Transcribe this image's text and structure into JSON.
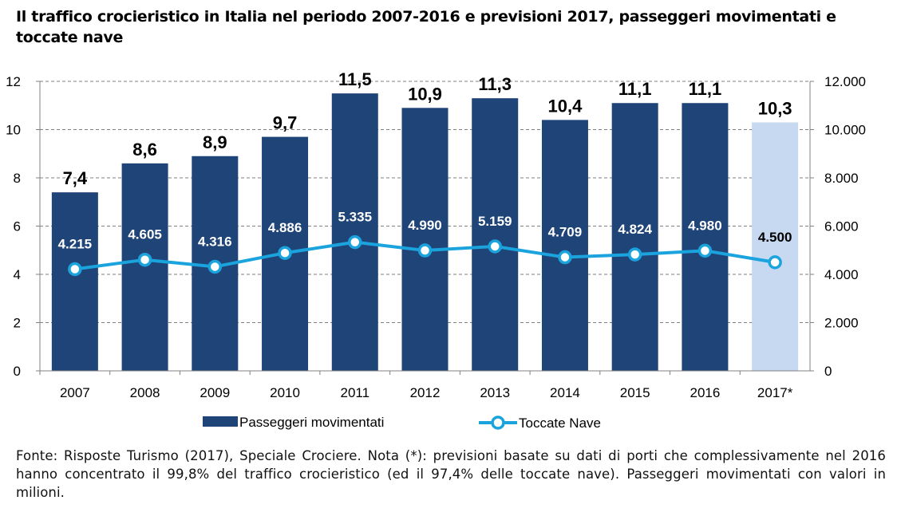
{
  "title": "Il traffico crocieristico in Italia nel periodo 2007-2016 e previsioni 2017, passeggeri movimentati e toccate nave",
  "footnote": "Fonte: Risposte Turismo (2017), Speciale Crociere. Nota (*): previsioni basate su dati di porti che complessivamente nel 2016 hanno concentrato il 99,8% del traffico crocieristico (ed il 97,4% delle toccate nave). Passeggeri movimentati con valori in milioni.",
  "chart_data": {
    "type": "bar",
    "categories": [
      "2007",
      "2008",
      "2009",
      "2010",
      "2011",
      "2012",
      "2013",
      "2014",
      "2015",
      "2016",
      "2017*"
    ],
    "series": [
      {
        "name": "Passeggeri movimentati",
        "type": "bar",
        "axis": "left",
        "values": [
          7.4,
          8.6,
          8.9,
          9.7,
          11.5,
          10.9,
          11.3,
          10.4,
          11.1,
          11.1,
          10.3
        ],
        "labels": [
          "7,4",
          "8,6",
          "8,9",
          "9,7",
          "11,5",
          "10,9",
          "11,3",
          "10,4",
          "11,1",
          "11,1",
          "10,3"
        ],
        "color": "#1f4477",
        "forecast_color": "#c6d9f1"
      },
      {
        "name": "Toccate Nave",
        "type": "line",
        "axis": "right",
        "values": [
          4215,
          4605,
          4316,
          4886,
          5335,
          4990,
          5159,
          4709,
          4824,
          4980,
          4500
        ],
        "labels": [
          "4.215",
          "4.605",
          "4.316",
          "4.886",
          "5.335",
          "4.990",
          "5.159",
          "4.709",
          "4.824",
          "4.980",
          "4.500"
        ],
        "color": "#1aa3dc"
      }
    ],
    "y_left": {
      "ylim": [
        0,
        12
      ],
      "ticks": [
        "0",
        "2",
        "4",
        "6",
        "8",
        "10",
        "12"
      ]
    },
    "y_right": {
      "ylim": [
        0,
        12000
      ],
      "ticks": [
        "0",
        "2.000",
        "4.000",
        "6.000",
        "8.000",
        "10.000",
        "12.000"
      ]
    },
    "grid": true,
    "legend": "bottom"
  }
}
